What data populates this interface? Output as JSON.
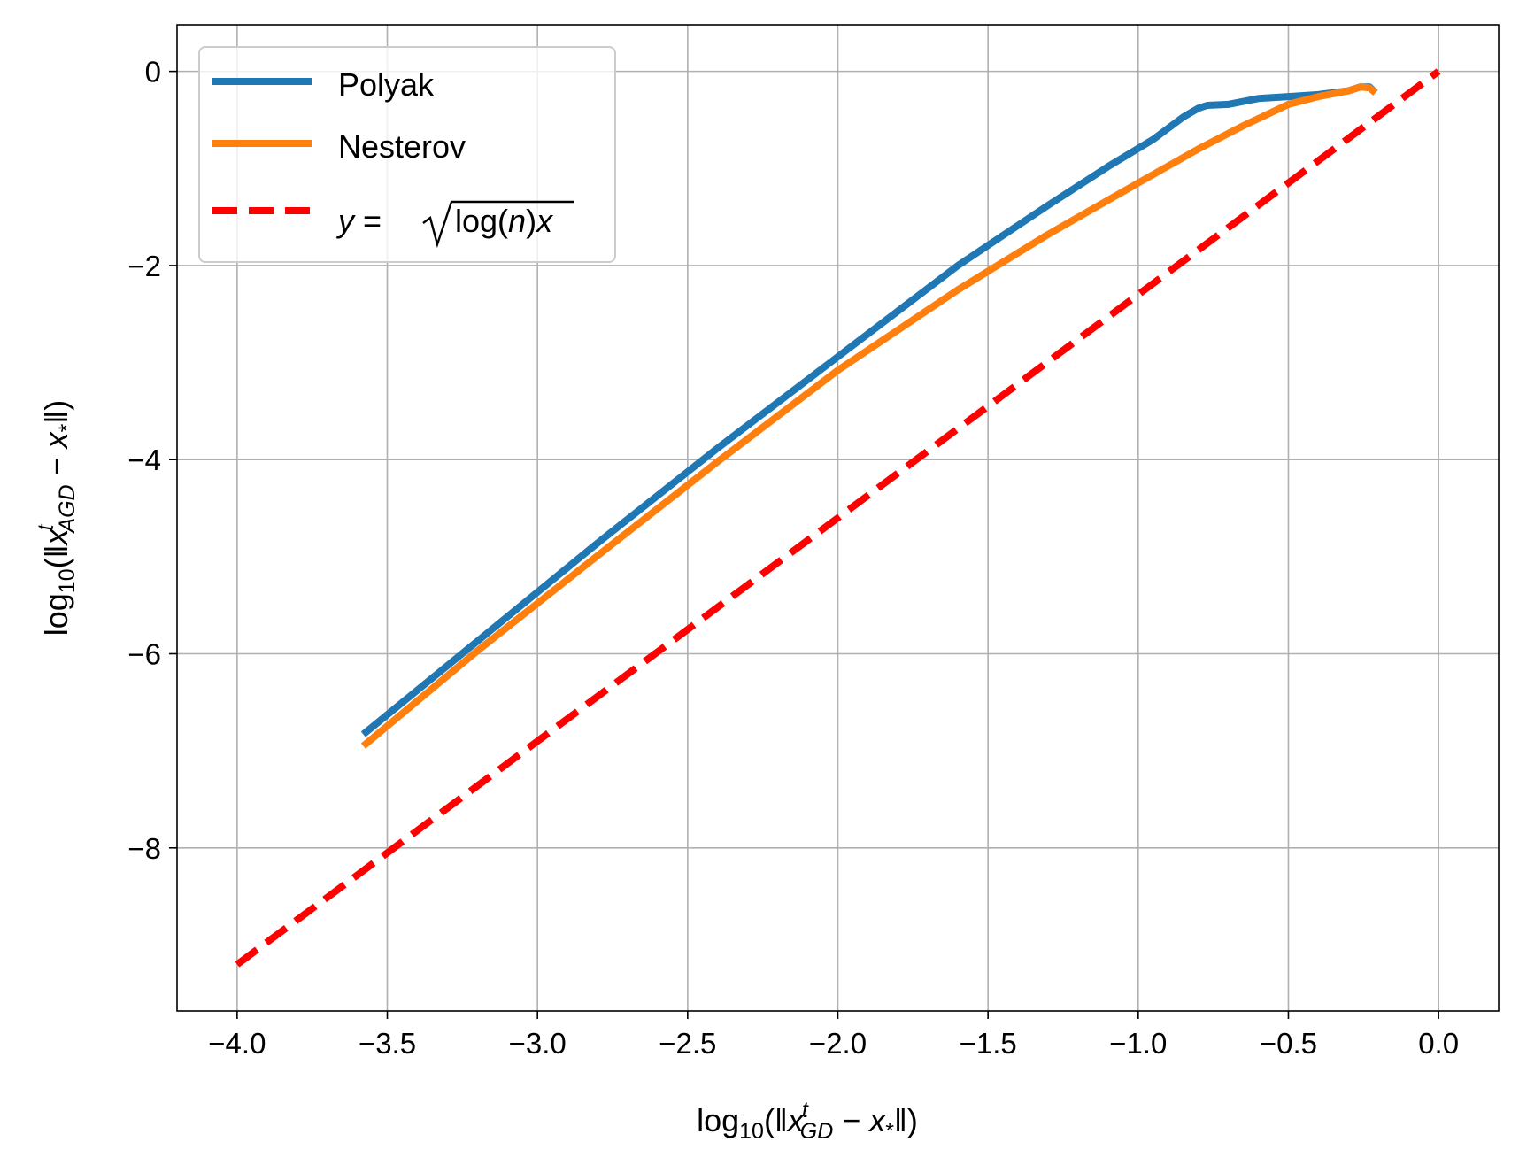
{
  "chart_data": {
    "type": "line",
    "title": "",
    "xlim": [
      -4.2,
      0.2
    ],
    "ylim": [
      -9.68,
      0.48
    ],
    "grid": true,
    "legend_position": "upper-left",
    "xticks": [
      -4.0,
      -3.5,
      -3.0,
      -2.5,
      -2.0,
      -1.5,
      -1.0,
      -0.5,
      0.0
    ],
    "xtick_labels": [
      "−4.0",
      "−3.5",
      "−3.0",
      "−2.5",
      "−2.0",
      "−1.5",
      "−1.0",
      "−0.5",
      "0.0"
    ],
    "yticks": [
      0,
      -2,
      -4,
      -6,
      -8
    ],
    "ytick_labels": [
      "0",
      "−2",
      "−4",
      "−6",
      "−8"
    ],
    "xlabel": {
      "prefix": "log",
      "sub": "10",
      "open": "(‖",
      "var": "x",
      "sup": "t",
      "varsub": "GD",
      "minus": " − ",
      "xstar": "x",
      "starsub": "*",
      "close": "‖)"
    },
    "ylabel": {
      "prefix": "log",
      "sub": "10",
      "open": "(‖",
      "var": "x",
      "sup": "t",
      "varsub": "AGD",
      "minus": " − ",
      "xstar": "x",
      "starsub": "*",
      "close": "‖)"
    },
    "series": [
      {
        "name": "Polyak",
        "color": "#1f77b4",
        "style": "solid",
        "x": [
          -3.58,
          -3.2,
          -2.8,
          -2.4,
          -2.0,
          -1.6,
          -1.3,
          -1.1,
          -0.95,
          -0.85,
          -0.8,
          -0.77,
          -0.7,
          -0.6,
          -0.5,
          -0.4,
          -0.3,
          -0.26,
          -0.23,
          -0.21
        ],
        "y": [
          -6.83,
          -5.87,
          -4.86,
          -3.88,
          -2.94,
          -2.0,
          -1.38,
          -0.98,
          -0.7,
          -0.47,
          -0.38,
          -0.35,
          -0.34,
          -0.28,
          -0.26,
          -0.24,
          -0.2,
          -0.16,
          -0.16,
          -0.22
        ]
      },
      {
        "name": "Nesterov",
        "color": "#ff7f0e",
        "style": "solid",
        "x": [
          -3.58,
          -3.2,
          -2.8,
          -2.4,
          -2.0,
          -1.6,
          -1.3,
          -1.0,
          -0.8,
          -0.65,
          -0.5,
          -0.4,
          -0.3,
          -0.26,
          -0.23,
          -0.21
        ],
        "y": [
          -6.95,
          -5.97,
          -4.99,
          -4.02,
          -3.08,
          -2.25,
          -1.68,
          -1.15,
          -0.8,
          -0.56,
          -0.34,
          -0.26,
          -0.2,
          -0.16,
          -0.17,
          -0.22
        ]
      },
      {
        "name": "y = √log(n) x",
        "color": "#ff0000",
        "style": "dashed",
        "x": [
          -4.0,
          0.0
        ],
        "y": [
          -9.2,
          0.0
        ]
      }
    ],
    "legend_math": {
      "y": "y",
      "eq": " = ",
      "log": "log(",
      "n": "n",
      "paren": ")",
      "x": "x"
    }
  }
}
